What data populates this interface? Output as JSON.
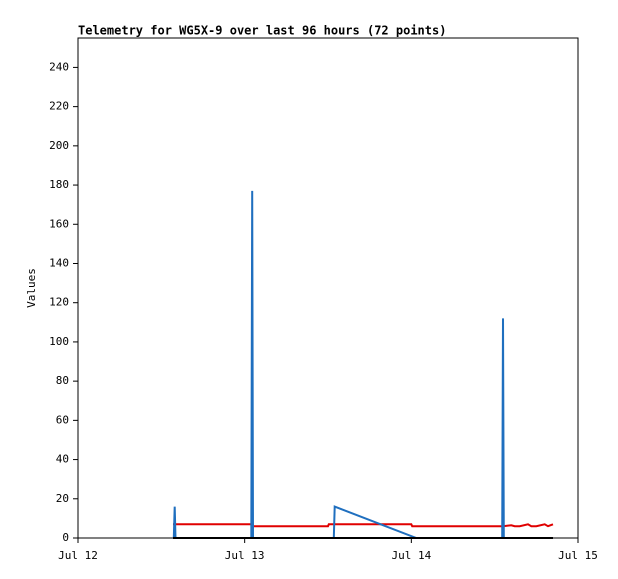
{
  "chart_data": {
    "type": "line",
    "title": "Telemetry for WG5X-9 over last 96 hours (72 points)",
    "y_label": "Values",
    "xlim": [
      12,
      15
    ],
    "xticks": [
      {
        "value": 12,
        "label": "Jul 12"
      },
      {
        "value": 13,
        "label": "Jul 13"
      },
      {
        "value": 14,
        "label": "Jul 14"
      },
      {
        "value": 15,
        "label": "Jul 15"
      }
    ],
    "ylim": [
      0,
      255
    ],
    "yticks": [
      0,
      20,
      40,
      60,
      80,
      100,
      120,
      140,
      160,
      180,
      200,
      220,
      240
    ],
    "series": [
      {
        "color": "#e00000",
        "x": [
          12.57,
          13.04,
          13.045,
          13.5,
          13.505,
          14.0,
          14.005,
          14.55,
          14.6,
          14.62,
          14.65,
          14.7,
          14.72,
          14.75,
          14.8,
          14.82,
          14.85
        ],
        "values": [
          7,
          7,
          6,
          6,
          7,
          7,
          6,
          6,
          6.5,
          6,
          6,
          7,
          6,
          6,
          7,
          6,
          7
        ]
      },
      {
        "color": "#1f6fbf",
        "x": [
          12.575,
          12.58,
          12.585,
          13.04,
          13.045,
          13.05,
          13.535,
          13.54,
          14.03,
          14.545,
          14.55,
          14.555,
          14.85
        ],
        "values": [
          0,
          16,
          0,
          0,
          177,
          0,
          0,
          16,
          0,
          0,
          112,
          0,
          0
        ]
      },
      {
        "color": "#000000",
        "x": [
          12.57,
          14.85
        ],
        "values": [
          0,
          0
        ]
      }
    ]
  }
}
